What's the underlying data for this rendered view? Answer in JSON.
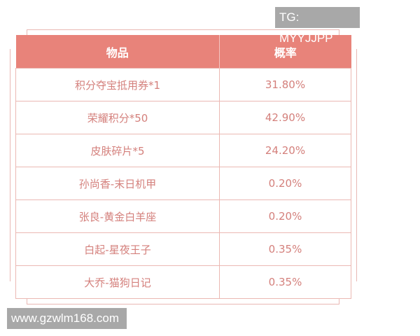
{
  "watermark_top": "TG: MYYJJPP",
  "watermark_bottom": "www.gzwlm168.com",
  "table": {
    "headers": [
      "物品",
      "概率"
    ],
    "rows": [
      [
        "积分夺宝抵用券*1",
        "31.80%"
      ],
      [
        "荣耀积分*50",
        "42.90%"
      ],
      [
        "皮肤碎片*5",
        "24.20%"
      ],
      [
        "孙尚香-末日机甲",
        "0.20%"
      ],
      [
        "张良-黄金白羊座",
        "0.20%"
      ],
      [
        "白起-星夜王子",
        "0.35%"
      ],
      [
        "大乔-猫狗日记",
        "0.35%"
      ]
    ]
  },
  "colors": {
    "header": "#e8837a",
    "text": "#d4807c",
    "border": "#ebb8b3"
  }
}
